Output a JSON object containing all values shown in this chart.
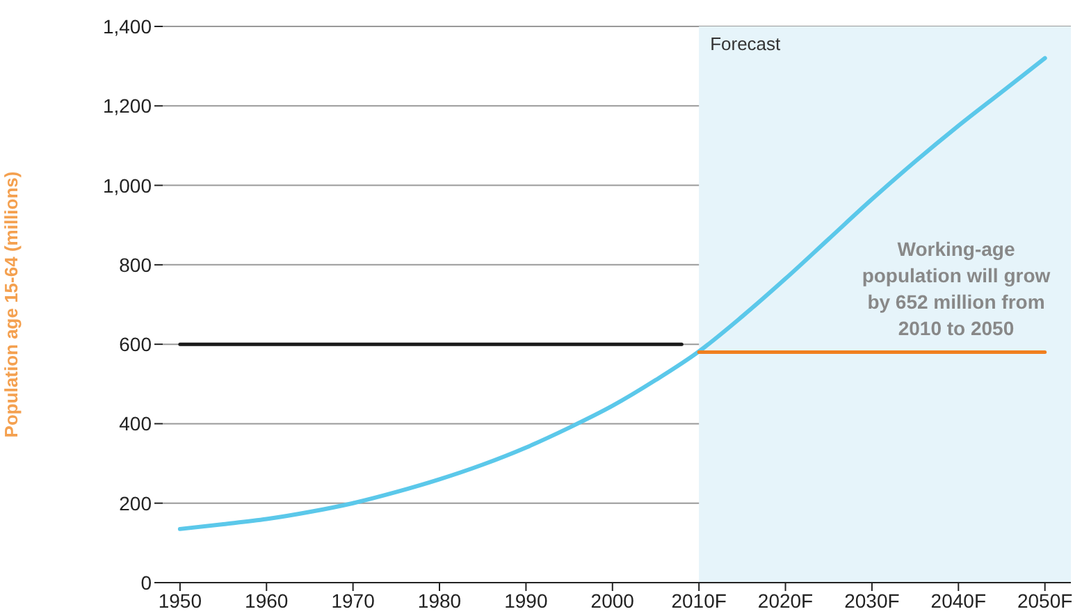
{
  "chart_data": {
    "type": "line",
    "ylabel": "Population age 15-64 (millions)",
    "xlim": [
      1948,
      2053
    ],
    "xticks": [
      1950,
      1960,
      1970,
      1980,
      1990,
      2000,
      {
        "value": 2010,
        "label": "2010F"
      },
      {
        "value": 2020,
        "label": "2020F"
      },
      {
        "value": 2030,
        "label": "2030F"
      },
      {
        "value": 2040,
        "label": "2040F"
      },
      {
        "value": 2050,
        "label": "2050F"
      }
    ],
    "ylim": [
      0,
      1400
    ],
    "yticks": [
      0,
      200,
      400,
      600,
      800,
      {
        "value": 1000,
        "label": "1,000"
      },
      {
        "value": 1200,
        "label": "1,200"
      },
      {
        "value": 1400,
        "label": "1,400"
      }
    ],
    "grid": "y",
    "marker": "none",
    "line_style": "solid",
    "series": [
      {
        "color": "#5bc8ea",
        "x": [
          1950,
          1955,
          1960,
          1965,
          1970,
          1975,
          1980,
          1985,
          1990,
          1995,
          2000,
          2005,
          2010,
          2015,
          2020,
          2025,
          2030,
          2035,
          2040,
          2045,
          2050
        ],
        "values": [
          135,
          147,
          160,
          178,
          200,
          228,
          260,
          297,
          340,
          390,
          445,
          510,
          582,
          670,
          765,
          865,
          965,
          1060,
          1150,
          1235,
          1320
        ]
      },
      {
        "color": "#1a1a1a",
        "x": [
          1950,
          2008
        ],
        "values": [
          600,
          600
        ]
      },
      {
        "color": "#f07f1f",
        "x": [
          2010,
          2050
        ],
        "values": [
          580,
          580
        ]
      }
    ],
    "bands": [
      {
        "axis": "x",
        "from": 2010,
        "to": 2053,
        "label": "Forecast",
        "color": "#e6f4fa"
      }
    ],
    "annotations": [
      "Working-age population will grow by 652 million from 2010 to 2050"
    ]
  }
}
